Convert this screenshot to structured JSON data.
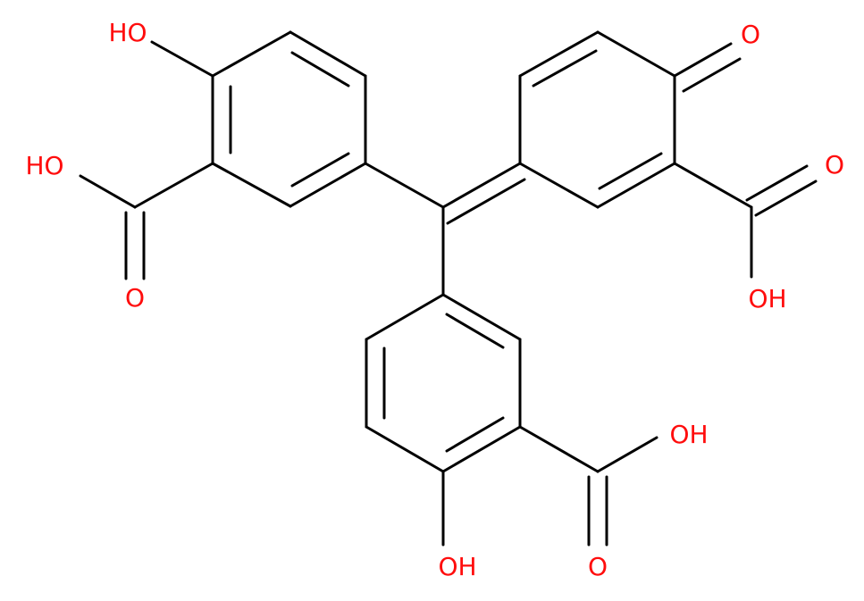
{
  "labels": [
    "HO",
    "HO",
    "O",
    "O",
    "O",
    "OH",
    "OH",
    "O",
    "OH"
  ]
}
